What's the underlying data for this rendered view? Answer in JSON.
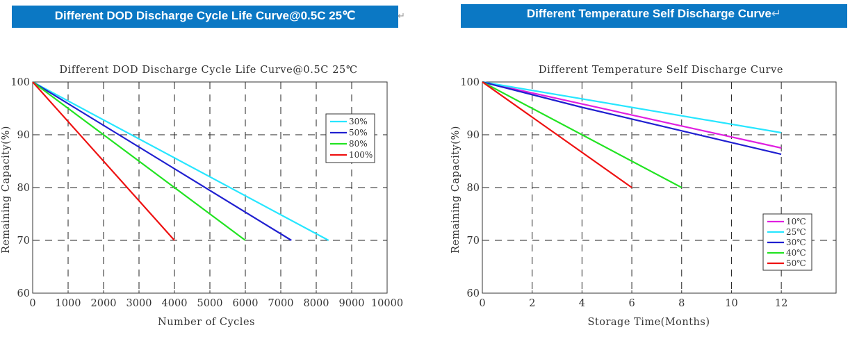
{
  "charts": [
    {
      "banner": "Different DOD Discharge Cycle Life Curve@0.5C  25℃",
      "return_mark": "↵"
    },
    {
      "banner": "Different Temperature Self Discharge Curve",
      "return_mark": "↵"
    }
  ],
  "chart_data": [
    {
      "type": "line",
      "title": "Different DOD Discharge Cycle Life Curve@0.5C 25℃",
      "xlabel": "Number of Cycles",
      "ylabel": "Remaining Capacity(%)",
      "xlim": [
        0,
        10000
      ],
      "ylim": [
        60,
        100
      ],
      "xticks": [
        0,
        1000,
        2000,
        3000,
        4000,
        5000,
        6000,
        7000,
        8000,
        9000,
        10000
      ],
      "yticks": [
        60,
        70,
        80,
        90,
        100
      ],
      "grid": "dashed",
      "legend_position": "top-right",
      "series": [
        {
          "name": "30%",
          "color": "#27e6ff",
          "points": [
            [
              0,
              100
            ],
            [
              8350,
              70
            ]
          ]
        },
        {
          "name": "50%",
          "color": "#2020d0",
          "points": [
            [
              0,
              100
            ],
            [
              7300,
              70
            ]
          ]
        },
        {
          "name": "80%",
          "color": "#22e322",
          "points": [
            [
              0,
              100
            ],
            [
              6000,
              70
            ]
          ]
        },
        {
          "name": "100%",
          "color": "#ee1111",
          "points": [
            [
              0,
              100
            ],
            [
              4000,
              70
            ]
          ]
        }
      ]
    },
    {
      "type": "line",
      "title": "Different Temperature Self Discharge Curve",
      "xlabel": "Storage Time(Months)",
      "ylabel": "Remaining Capacity(%)",
      "xlim": [
        0,
        14.2
      ],
      "ylim": [
        60,
        100
      ],
      "xticks": [
        0,
        2,
        4,
        6,
        8,
        10,
        12
      ],
      "yticks": [
        60,
        70,
        80,
        90,
        100
      ],
      "grid": "dashed",
      "legend_position": "bottom-right",
      "series": [
        {
          "name": "10℃",
          "color": "#e020e0",
          "points": [
            [
              0,
              100
            ],
            [
              12,
              87.5
            ]
          ]
        },
        {
          "name": "25℃",
          "color": "#27e6ff",
          "points": [
            [
              0,
              100
            ],
            [
              12,
              90.4
            ]
          ]
        },
        {
          "name": "30℃",
          "color": "#2020d0",
          "points": [
            [
              0,
              100
            ],
            [
              4,
              95.2
            ],
            [
              12,
              86.3
            ]
          ]
        },
        {
          "name": "40℃",
          "color": "#22e322",
          "points": [
            [
              0,
              100
            ],
            [
              8,
              80
            ]
          ]
        },
        {
          "name": "50℃",
          "color": "#ee1111",
          "points": [
            [
              0,
              100
            ],
            [
              6,
              80
            ]
          ]
        }
      ]
    }
  ]
}
